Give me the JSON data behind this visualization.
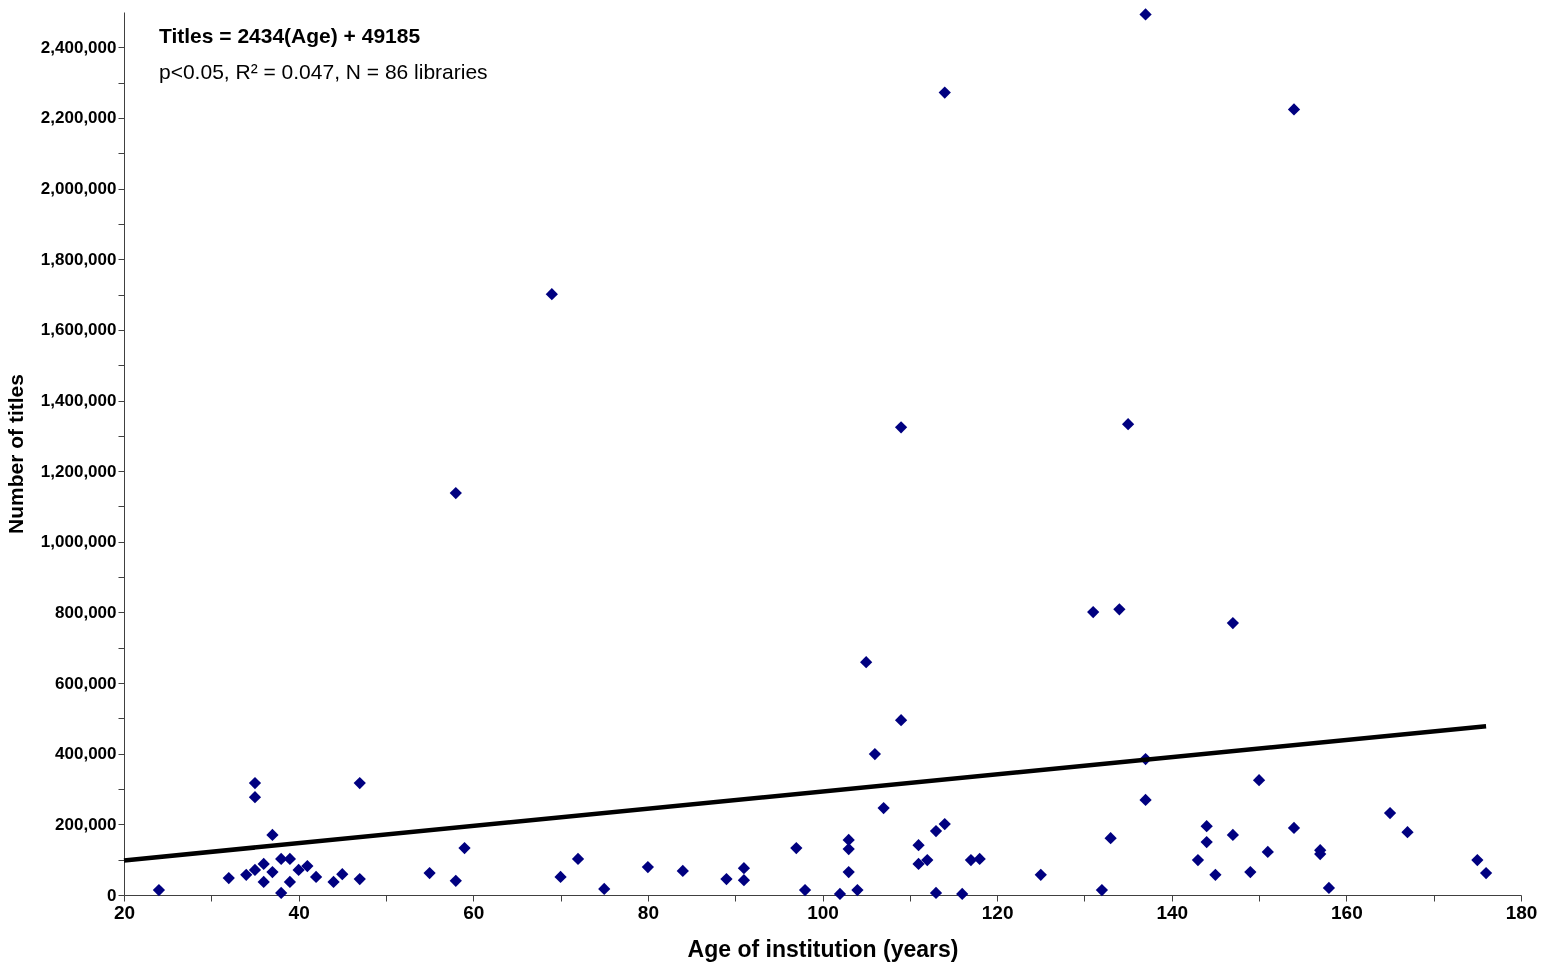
{
  "chart_data": {
    "type": "scatter",
    "xlabel": "Age of institution (years)",
    "ylabel": "Number of titles",
    "annotations": [
      "Titles = 2434(Age) + 49185",
      "p<0.05, R² = 0.047, N = 86 libraries"
    ],
    "xlim": [
      20,
      180
    ],
    "ylim": [
      0,
      2500000
    ],
    "xticks": [
      20,
      {
        "value": 30,
        "label": null
      },
      40,
      {
        "value": 50,
        "label": null
      },
      60,
      {
        "value": 70,
        "label": null
      },
      80,
      {
        "value": 90,
        "label": null
      },
      100,
      {
        "value": 110,
        "label": null
      },
      120,
      {
        "value": 130,
        "label": null
      },
      140,
      {
        "value": 150,
        "label": null
      },
      160,
      {
        "value": 170,
        "label": null
      },
      180
    ],
    "yticks": [
      {
        "value": 0,
        "label": "0"
      },
      {
        "value": 100000,
        "label": null
      },
      {
        "value": 200000,
        "label": "200,000"
      },
      {
        "value": 300000,
        "label": null
      },
      {
        "value": 400000,
        "label": "400,000"
      },
      {
        "value": 500000,
        "label": null
      },
      {
        "value": 600000,
        "label": "600,000"
      },
      {
        "value": 700000,
        "label": null
      },
      {
        "value": 800000,
        "label": "800,000"
      },
      {
        "value": 900000,
        "label": null
      },
      {
        "value": 1000000,
        "label": "1,000,000"
      },
      {
        "value": 1100000,
        "label": null
      },
      {
        "value": 1200000,
        "label": "1,200,000"
      },
      {
        "value": 1300000,
        "label": null
      },
      {
        "value": 1400000,
        "label": "1,400,000"
      },
      {
        "value": 1500000,
        "label": null
      },
      {
        "value": 1600000,
        "label": "1,600,000"
      },
      {
        "value": 1700000,
        "label": null
      },
      {
        "value": 1800000,
        "label": "1,800,000"
      },
      {
        "value": 1900000,
        "label": null
      },
      {
        "value": 2000000,
        "label": "2,000,000"
      },
      {
        "value": 2100000,
        "label": null
      },
      {
        "value": 2200000,
        "label": "2,200,000"
      },
      {
        "value": 2300000,
        "label": null
      },
      {
        "value": 2400000,
        "label": "2,400,000"
      }
    ],
    "grid": false,
    "series": [
      {
        "marker": "diamond",
        "color": "#000080",
        "x": [
          24,
          32,
          34,
          35,
          35,
          35,
          36,
          36,
          37,
          37,
          38,
          38,
          39,
          39,
          40,
          41,
          42,
          44,
          45,
          47,
          47,
          55,
          58,
          58,
          59,
          69,
          70,
          72,
          75,
          80,
          84,
          89,
          91,
          91,
          97,
          98,
          102,
          103,
          103,
          103,
          104,
          105,
          106,
          107,
          109,
          109,
          111,
          111,
          112,
          113,
          113,
          114,
          114,
          116,
          117,
          118,
          125,
          131,
          132,
          133,
          134,
          135,
          137,
          137,
          137,
          143,
          144,
          144,
          145,
          147,
          147,
          149,
          150,
          151,
          154,
          154,
          157,
          157,
          158,
          165,
          167,
          175,
          176
        ],
        "values": [
          14000,
          48000,
          57000,
          317000,
          277000,
          71000,
          88000,
          37000,
          170000,
          65000,
          102000,
          6000,
          102000,
          37000,
          71000,
          82000,
          51000,
          37000,
          59000,
          317000,
          45000,
          62000,
          1138000,
          40000,
          133000,
          1701000,
          51000,
          102000,
          17000,
          79000,
          68000,
          45000,
          76000,
          42000,
          133000,
          14000,
          3000,
          156000,
          130000,
          65000,
          14000,
          659000,
          399000,
          246000,
          1324000,
          495000,
          141000,
          88000,
          99000,
          181000,
          6000,
          2272000,
          201000,
          3000,
          99000,
          102000,
          57000,
          801000,
          14000,
          161000,
          809000,
          1333000,
          2493000,
          385000,
          269000,
          99000,
          195000,
          150000,
          57000,
          770000,
          170000,
          65000,
          325000,
          122000,
          2224000,
          190000,
          127000,
          116000,
          20000,
          232000,
          178000,
          99000,
          62000
        ]
      },
      {
        "type": "line",
        "line_style": "solid",
        "color": "#000000",
        "x": [
          20,
          176
        ],
        "values": [
          98000,
          478000
        ]
      }
    ]
  }
}
